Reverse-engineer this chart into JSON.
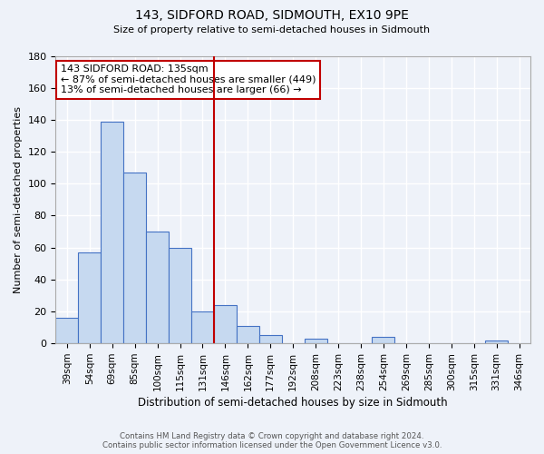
{
  "title": "143, SIDFORD ROAD, SIDMOUTH, EX10 9PE",
  "subtitle": "Size of property relative to semi-detached houses in Sidmouth",
  "xlabel": "Distribution of semi-detached houses by size in Sidmouth",
  "ylabel": "Number of semi-detached properties",
  "footnote1": "Contains HM Land Registry data © Crown copyright and database right 2024.",
  "footnote2": "Contains public sector information licensed under the Open Government Licence v3.0.",
  "bin_labels": [
    "39sqm",
    "54sqm",
    "69sqm",
    "85sqm",
    "100sqm",
    "115sqm",
    "131sqm",
    "146sqm",
    "162sqm",
    "177sqm",
    "192sqm",
    "208sqm",
    "223sqm",
    "238sqm",
    "254sqm",
    "269sqm",
    "285sqm",
    "300sqm",
    "315sqm",
    "331sqm",
    "346sqm"
  ],
  "bin_values": [
    16,
    57,
    139,
    107,
    70,
    60,
    20,
    24,
    11,
    5,
    0,
    3,
    0,
    0,
    4,
    0,
    0,
    0,
    0,
    2,
    0
  ],
  "bar_color": "#c6d9f0",
  "bar_edge_color": "#4472c4",
  "vline_pos": 6.5,
  "vline_color": "#c00000",
  "annotation_title": "143 SIDFORD ROAD: 135sqm",
  "annotation_line1": "← 87% of semi-detached houses are smaller (449)",
  "annotation_line2": "13% of semi-detached houses are larger (66) →",
  "annotation_box_color": "#c00000",
  "ylim": [
    0,
    180
  ],
  "yticks": [
    0,
    20,
    40,
    60,
    80,
    100,
    120,
    140,
    160,
    180
  ],
  "bg_color": "#eef2f9",
  "grid_color": "#ffffff"
}
